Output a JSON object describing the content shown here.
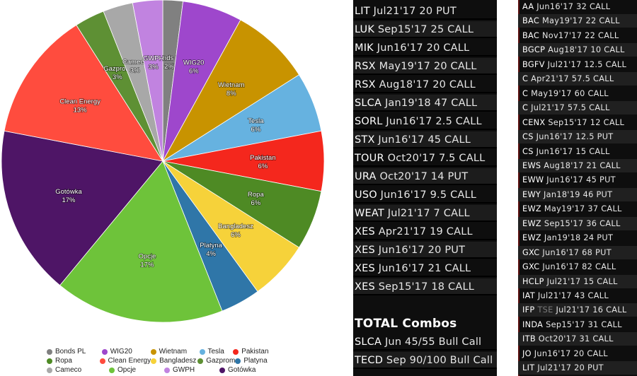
{
  "chart_data": {
    "type": "pie",
    "title": "",
    "slices": [
      {
        "label": "Bonds PL",
        "value": 2,
        "pct": "2%",
        "color": "#808080"
      },
      {
        "label": "WIG20",
        "value": 6,
        "pct": "6%",
        "color": "#9e47cc"
      },
      {
        "label": "Wietnam",
        "value": 8,
        "pct": "8%",
        "color": "#c89300"
      },
      {
        "label": "Tesla",
        "value": 6,
        "pct": "6%",
        "color": "#66b2e0"
      },
      {
        "label": "Pakistan",
        "value": 6,
        "pct": "6%",
        "color": "#f4271d"
      },
      {
        "label": "Ropa",
        "value": 6,
        "pct": "6%",
        "color": "#4e8a24"
      },
      {
        "label": "Bangladesz",
        "value": 6,
        "pct": "6%",
        "color": "#f6d23a"
      },
      {
        "label": "Platyna",
        "value": 4,
        "pct": "4%",
        "color": "#2f76a8"
      },
      {
        "label": "Opcje",
        "value": 17,
        "pct": "17%",
        "color": "#6ec33a"
      },
      {
        "label": "Gotówka",
        "value": 17,
        "pct": "17%",
        "color": "#4e1566"
      },
      {
        "label": "Clean Energy",
        "value": 13,
        "pct": "13%",
        "color": "#ff4c3e"
      },
      {
        "label": "Gazprom",
        "value": 3,
        "pct": "3%",
        "color": "#5e9034"
      },
      {
        "label": "Cameco",
        "value": 3,
        "pct": "3%",
        "color": "#a8a8a8"
      },
      {
        "label": "GWPH",
        "value": 3,
        "pct": "3%",
        "color": "#c183e0"
      }
    ],
    "legend": [
      "Bonds PL",
      "WIG20",
      "Wietnam",
      "Tesla",
      "Pakistan",
      "Ropa",
      "Clean Energy",
      "Bangladesz",
      "Gazprom",
      "Platyna",
      "Cameco",
      "Opcje",
      "GWPH",
      "Gotówka"
    ],
    "legend_placement": "bottom"
  },
  "left_panel": {
    "rows": [
      {
        "ticker": "LIT",
        "detail": "Jul21'17 20 PUT"
      },
      {
        "ticker": "LUK",
        "detail": "Sep15'17 25 CALL"
      },
      {
        "ticker": "MIK",
        "detail": "Jun16'17 20 CALL"
      },
      {
        "ticker": "RSX",
        "detail": "May19'17 20 CALL"
      },
      {
        "ticker": "RSX",
        "detail": "Aug18'17 20 CALL"
      },
      {
        "ticker": "SLCA",
        "detail": "Jan19'18 47 CALL"
      },
      {
        "ticker": "SORL",
        "detail": "Jun16'17 2.5 CALL"
      },
      {
        "ticker": "STX",
        "detail": "Jun16'17 45 CALL"
      },
      {
        "ticker": "TOUR",
        "detail": "Oct20'17 7.5 CALL"
      },
      {
        "ticker": "URA",
        "detail": "Oct20'17 14 PUT"
      },
      {
        "ticker": "USO",
        "detail": "Jun16'17 9.5 CALL"
      },
      {
        "ticker": "WEAT",
        "detail": "Jul21'17 7 CALL"
      },
      {
        "ticker": "XES",
        "detail": "Apr21'17 19 CALL"
      },
      {
        "ticker": "XES",
        "detail": "Jun16'17 20 PUT"
      },
      {
        "ticker": "XES",
        "detail": "Jun16'17 21 CALL"
      },
      {
        "ticker": "XES",
        "detail": "Sep15'17 18 CALL"
      }
    ],
    "section_title": "TOTAL Combos",
    "combos": [
      {
        "ticker": "SLCA",
        "detail": "Jun 45/55 Bull Call"
      },
      {
        "ticker": "TECD",
        "detail": "Sep 90/100 Bull Call"
      }
    ]
  },
  "right_panel": {
    "rows": [
      {
        "ticker": "AA",
        "detail": "Jun16'17 32 CALL"
      },
      {
        "ticker": "BAC",
        "detail": "May19'17 22 CALL"
      },
      {
        "ticker": "BAC",
        "detail": "Nov17'17 22 CALL"
      },
      {
        "ticker": "BGCP",
        "detail": "Aug18'17 10 CALL"
      },
      {
        "ticker": "BGFV",
        "detail": "Jul21'17 12.5 CALL"
      },
      {
        "ticker": "C",
        "detail": "Apr21'17 57.5 CALL"
      },
      {
        "ticker": "C",
        "detail": "May19'17 60 CALL"
      },
      {
        "ticker": "C",
        "detail": "Jul21'17 57.5 CALL"
      },
      {
        "ticker": "CENX",
        "detail": "Sep15'17 12 CALL"
      },
      {
        "ticker": "CS",
        "detail": "Jun16'17 12.5 PUT"
      },
      {
        "ticker": "CS",
        "detail": "Jun16'17 15 CALL"
      },
      {
        "ticker": "EWS",
        "detail": "Aug18'17 21 CALL"
      },
      {
        "ticker": "EWW",
        "detail": "Jun16'17 45 PUT"
      },
      {
        "ticker": "EWY",
        "detail": "Jan18'19 46 PUT"
      },
      {
        "ticker": "EWZ",
        "detail": "May19'17 37 CALL"
      },
      {
        "ticker": "EWZ",
        "detail": "Sep15'17 36 CALL"
      },
      {
        "ticker": "EWZ",
        "detail": "Jan19'18 24 PUT"
      },
      {
        "ticker": "GXC",
        "detail": "Jun16'17 68 PUT"
      },
      {
        "ticker": "GXC",
        "detail": "Jun16'17 82 CALL"
      },
      {
        "ticker": "HCLP",
        "detail": "Jul21'17 15 CALL"
      },
      {
        "ticker": "IAT",
        "detail": "Jul21'17 43 CALL"
      },
      {
        "ticker": "IFP",
        "exch": "TSE",
        "detail": "Jul21'17 16 CALL"
      },
      {
        "ticker": "INDA",
        "detail": "Sep15'17 31 CALL"
      },
      {
        "ticker": "ITB",
        "detail": "Oct20'17 31 CALL"
      },
      {
        "ticker": "JO",
        "detail": "Jun16'17 20 CALL"
      },
      {
        "ticker": "LIT",
        "detail": "Jul21'17 20 PUT"
      }
    ]
  }
}
